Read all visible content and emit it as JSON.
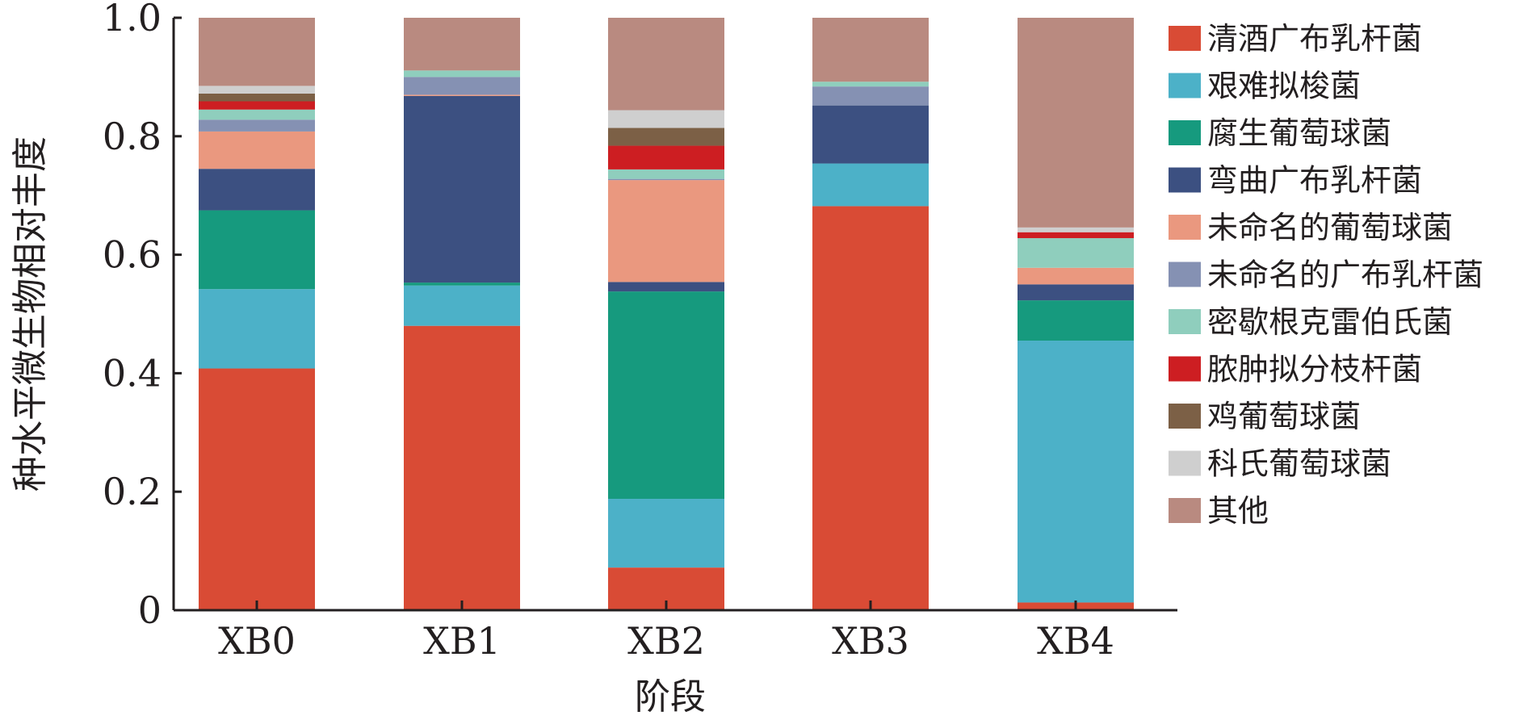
{
  "chart_data": {
    "type": "bar",
    "stacked": true,
    "xlabel": "阶段",
    "ylabel": "种水平微生物相对丰度",
    "ylim": [
      0,
      1.0
    ],
    "yticks": [
      "0",
      "0.2",
      "0.4",
      "0.6",
      "0.8",
      "1.0"
    ],
    "ytick_values": [
      0,
      0.2,
      0.4,
      0.6,
      0.8,
      1.0
    ],
    "categories": [
      "XB0",
      "XB1",
      "XB2",
      "XB3",
      "XB4"
    ],
    "legend_position": "right",
    "series": [
      {
        "name": "清酒广布乳杆菌",
        "color": "#d94b35",
        "values": [
          0.408,
          0.48,
          0.072,
          0.682,
          0.013
        ]
      },
      {
        "name": "艰难拟梭菌",
        "color": "#4cb1c8",
        "values": [
          0.134,
          0.068,
          0.116,
          0.072,
          0.442
        ]
      },
      {
        "name": "腐生葡萄球菌",
        "color": "#169a7e",
        "values": [
          0.133,
          0.005,
          0.35,
          0.0,
          0.068
        ]
      },
      {
        "name": "弯曲广布乳杆菌",
        "color": "#3c5081",
        "values": [
          0.07,
          0.315,
          0.016,
          0.098,
          0.027
        ]
      },
      {
        "name": "未命名的葡萄球菌",
        "color": "#ea987f",
        "values": [
          0.063,
          0.002,
          0.172,
          0.0,
          0.028
        ]
      },
      {
        "name": "未命名的广布乳杆菌",
        "color": "#8591b3",
        "values": [
          0.02,
          0.03,
          0.002,
          0.032,
          0.0
        ]
      },
      {
        "name": "密歇根克雷伯氏菌",
        "color": "#8fcebd",
        "values": [
          0.017,
          0.011,
          0.016,
          0.008,
          0.05
        ]
      },
      {
        "name": "脓肿拟分枝杆菌",
        "color": "#cd1e22",
        "values": [
          0.014,
          0.0,
          0.04,
          0.0,
          0.01
        ]
      },
      {
        "name": "鸡葡萄球菌",
        "color": "#7c6046",
        "values": [
          0.013,
          0.0,
          0.03,
          0.0,
          0.0
        ]
      },
      {
        "name": "科氏葡萄球菌",
        "color": "#cfcfcf",
        "values": [
          0.013,
          0.0,
          0.03,
          0.0,
          0.008
        ]
      },
      {
        "name": "其他",
        "color": "#b98a80",
        "values": [
          0.115,
          0.089,
          0.156,
          0.108,
          0.354
        ]
      }
    ]
  }
}
